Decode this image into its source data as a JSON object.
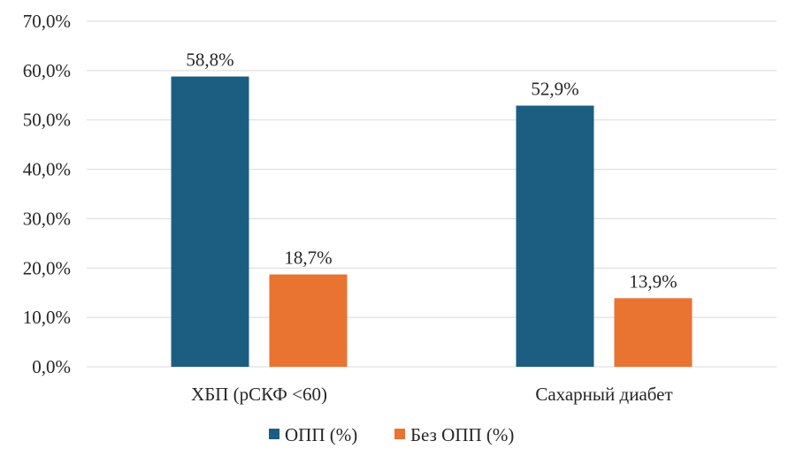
{
  "chart_data": {
    "type": "bar",
    "categories": [
      "ХБП (рСКФ <60)",
      "Сахарный диабет"
    ],
    "series": [
      {
        "name": "ОПП (%)",
        "values": [
          58.8,
          52.9
        ],
        "labels": [
          "58,8%",
          "52,9%"
        ],
        "color": "#1b5e82"
      },
      {
        "name": "Без ОПП (%)",
        "values": [
          18.7,
          13.9
        ],
        "labels": [
          "18,7%",
          "13,9%"
        ],
        "color": "#e97331"
      }
    ],
    "ylim": [
      0,
      70
    ],
    "yticks": [
      0,
      10,
      20,
      30,
      40,
      50,
      60,
      70
    ],
    "ytick_labels": [
      "0,0%",
      "10,0%",
      "20,0%",
      "30,0%",
      "40,0%",
      "50,0%",
      "60,0%",
      "70,0%"
    ],
    "grid": true,
    "gridColor": "#d9d9d9",
    "legend": "bottom"
  }
}
